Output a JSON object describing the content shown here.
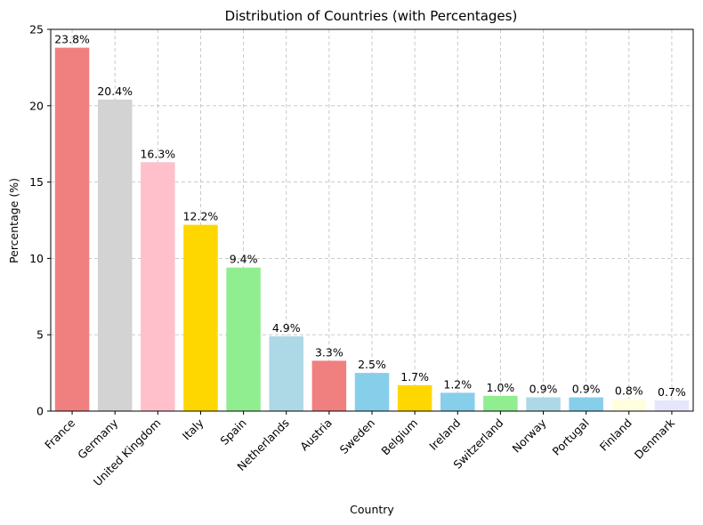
{
  "chart_data": {
    "type": "bar",
    "title": "Distribution of Countries (with Percentages)",
    "xlabel": "Country",
    "ylabel": "Percentage (%)",
    "ylim": [
      0,
      25
    ],
    "yticks": [
      0,
      5,
      10,
      15,
      20,
      25
    ],
    "grid": true,
    "categories": [
      "France",
      "Germany",
      "United Kingdom",
      "Italy",
      "Spain",
      "Netherlands",
      "Austria",
      "Sweden",
      "Belgium",
      "Ireland",
      "Switzerland",
      "Norway",
      "Portugal",
      "Finland",
      "Denmark"
    ],
    "values": [
      23.8,
      20.4,
      16.3,
      12.2,
      9.4,
      4.9,
      3.3,
      2.5,
      1.7,
      1.2,
      1.0,
      0.9,
      0.9,
      0.8,
      0.7
    ],
    "data_labels": [
      "23.8%",
      "20.4%",
      "16.3%",
      "12.2%",
      "9.4%",
      "4.9%",
      "3.3%",
      "2.5%",
      "1.7%",
      "1.2%",
      "1.0%",
      "0.9%",
      "0.9%",
      "0.8%",
      "0.7%"
    ],
    "colors": [
      "#f08080",
      "#d3d3d3",
      "#ffc0cb",
      "#ffd700",
      "#90ee90",
      "#add8e6",
      "#f08080",
      "#87ceeb",
      "#ffd700",
      "#87ceeb",
      "#90ee90",
      "#add8e6",
      "#87ceeb",
      "#ffffe0",
      "#e6e6fa"
    ]
  }
}
